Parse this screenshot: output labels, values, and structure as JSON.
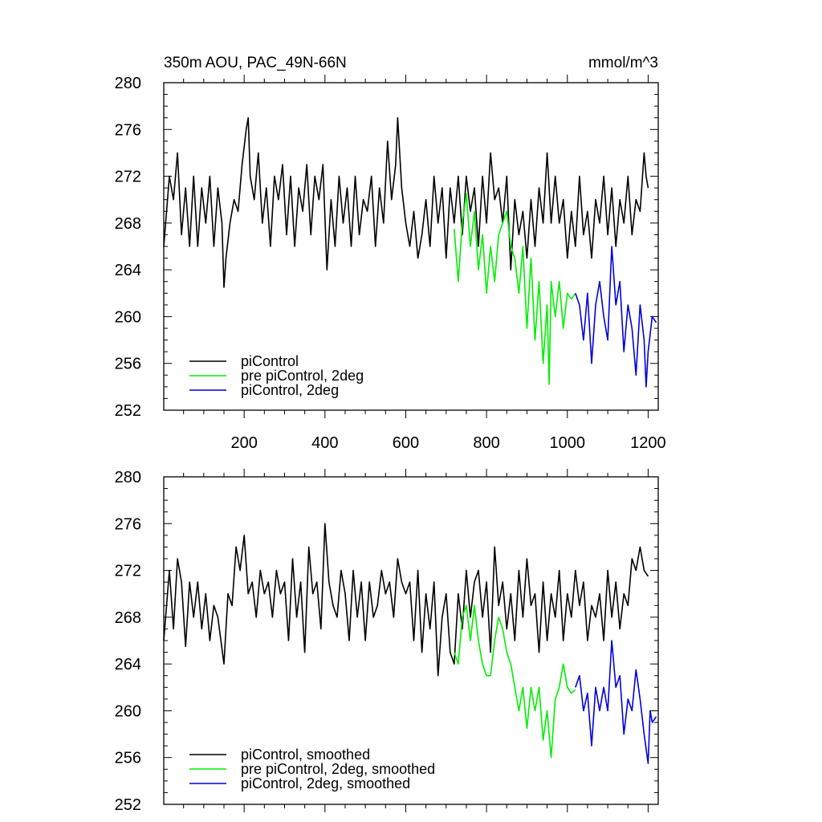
{
  "chart_data": [
    {
      "type": "line",
      "title": "350m AOU, PAC_49N-66N",
      "units": "mmol/m^3",
      "xlim": [
        1,
        1225
      ],
      "ylim": [
        252,
        280
      ],
      "xticks": [
        200,
        400,
        600,
        800,
        1000,
        1200
      ],
      "xtick_labels": [
        "200",
        "400",
        "600",
        "800",
        "1000",
        "1200"
      ],
      "yticks": [
        252,
        256,
        260,
        264,
        268,
        272,
        276,
        280
      ],
      "ytick_labels": [
        "252",
        "256",
        "260",
        "264",
        "268",
        "272",
        "276",
        "280"
      ],
      "legend_position": "bottom-left",
      "series": [
        {
          "name": "piControl",
          "color": "#000000",
          "x": [
            1,
            15,
            25,
            35,
            45,
            55,
            65,
            75,
            85,
            95,
            105,
            115,
            125,
            135,
            145,
            150,
            155,
            165,
            175,
            185,
            195,
            205,
            210,
            215,
            225,
            235,
            245,
            255,
            265,
            275,
            285,
            295,
            305,
            315,
            325,
            335,
            345,
            355,
            365,
            375,
            385,
            395,
            405,
            415,
            425,
            435,
            445,
            455,
            465,
            475,
            485,
            495,
            505,
            515,
            525,
            535,
            545,
            555,
            565,
            575,
            580,
            590,
            600,
            610,
            620,
            630,
            640,
            650,
            660,
            670,
            680,
            690,
            700,
            710,
            720,
            730,
            740,
            750,
            760,
            770,
            780,
            790,
            800,
            810,
            820,
            830,
            840,
            850,
            860,
            870,
            880,
            890,
            900,
            910,
            920,
            930,
            940,
            950,
            960,
            970,
            980,
            990,
            1000,
            1010,
            1020,
            1030,
            1040,
            1050,
            1060,
            1070,
            1080,
            1090,
            1100,
            1110,
            1120,
            1130,
            1140,
            1150,
            1160,
            1170,
            1180,
            1190,
            1195,
            1200
          ],
          "y": [
            266,
            272,
            270,
            274,
            267,
            271,
            266,
            272,
            266,
            271,
            268,
            272,
            266,
            271,
            268,
            262.5,
            265,
            268,
            270,
            269,
            273,
            276,
            277,
            272,
            270,
            274,
            268,
            271,
            266,
            272,
            270,
            273,
            267,
            272,
            266,
            271,
            269,
            273,
            267,
            272,
            270,
            273,
            264,
            270,
            266,
            272,
            268,
            271,
            266,
            272,
            267,
            270,
            269,
            272,
            266,
            271,
            268,
            275,
            270,
            273,
            277,
            271,
            268,
            266,
            269,
            265,
            267,
            270,
            266,
            272,
            268,
            271,
            265,
            271,
            268,
            272,
            267,
            272,
            269,
            271,
            266,
            272,
            268,
            274,
            270,
            271,
            268,
            272,
            264,
            270,
            267,
            269,
            265,
            270,
            266,
            271,
            268,
            274,
            268,
            272,
            268,
            270,
            265,
            269,
            266,
            272,
            267,
            269,
            265,
            270,
            268,
            272,
            267,
            271,
            266,
            270,
            268,
            272,
            267,
            270,
            269,
            274,
            272,
            271
          ]
        },
        {
          "name": "pre piControl, 2deg",
          "color": "#00ee00",
          "x": [
            720,
            730,
            740,
            750,
            760,
            770,
            780,
            790,
            800,
            810,
            820,
            830,
            840,
            850,
            860,
            870,
            880,
            890,
            900,
            910,
            920,
            930,
            940,
            950,
            955,
            960,
            970,
            980,
            990,
            1000,
            1010,
            1020
          ],
          "y": [
            267.5,
            263,
            268,
            270.5,
            266,
            269,
            264,
            267,
            262,
            266,
            263,
            267,
            268,
            269,
            266,
            265,
            262,
            266,
            259,
            265,
            258,
            263,
            256,
            261,
            254.2,
            263,
            260,
            263,
            259,
            262,
            261.5,
            262
          ]
        },
        {
          "name": "piControl, 2deg",
          "color": "#0000dd",
          "x": [
            1020,
            1030,
            1040,
            1050,
            1060,
            1070,
            1080,
            1090,
            1100,
            1110,
            1120,
            1130,
            1140,
            1150,
            1160,
            1170,
            1180,
            1190,
            1195,
            1200,
            1210,
            1220
          ],
          "y": [
            262,
            261,
            258,
            262,
            256,
            261,
            263,
            260,
            258,
            266,
            261,
            263,
            257,
            261,
            259,
            255,
            261,
            258,
            254,
            257,
            260,
            259.5
          ]
        }
      ]
    },
    {
      "type": "line",
      "title": "",
      "xlim": [
        1,
        1225
      ],
      "ylim": [
        252,
        280
      ],
      "yticks": [
        252,
        256,
        260,
        264,
        268,
        272,
        276,
        280
      ],
      "ytick_labels": [
        "252",
        "256",
        "260",
        "264",
        "268",
        "272",
        "276",
        "280"
      ],
      "legend_position": "bottom-left",
      "series": [
        {
          "name": "piControl, smoothed",
          "color": "#000000",
          "x": [
            1,
            15,
            25,
            35,
            45,
            55,
            65,
            75,
            85,
            95,
            105,
            115,
            125,
            135,
            150,
            160,
            170,
            180,
            190,
            200,
            210,
            220,
            230,
            240,
            250,
            260,
            270,
            280,
            290,
            300,
            310,
            320,
            330,
            340,
            350,
            360,
            370,
            380,
            390,
            400,
            410,
            420,
            430,
            440,
            450,
            460,
            470,
            480,
            490,
            500,
            510,
            520,
            530,
            540,
            550,
            560,
            570,
            580,
            590,
            600,
            610,
            620,
            630,
            640,
            650,
            660,
            670,
            680,
            690,
            700,
            710,
            720,
            730,
            740,
            750,
            760,
            770,
            780,
            790,
            800,
            810,
            820,
            830,
            840,
            850,
            860,
            870,
            880,
            890,
            900,
            910,
            920,
            930,
            940,
            950,
            960,
            970,
            980,
            990,
            1000,
            1010,
            1020,
            1030,
            1040,
            1050,
            1060,
            1070,
            1080,
            1090,
            1100,
            1110,
            1120,
            1130,
            1140,
            1150,
            1160,
            1170,
            1180,
            1190,
            1200
          ],
          "y": [
            266,
            272,
            267,
            273,
            271,
            265.5,
            271,
            268,
            271,
            267,
            270,
            266,
            269,
            268,
            264,
            270,
            269,
            274,
            272,
            275,
            270,
            271,
            268,
            272,
            270,
            271,
            268,
            272,
            270,
            271,
            266,
            273,
            268,
            271,
            265,
            274,
            270,
            271,
            267,
            276,
            271,
            269,
            268,
            272,
            270,
            266,
            272,
            268,
            271,
            266,
            271,
            268,
            269,
            272,
            270,
            271,
            268,
            273,
            271,
            270,
            271,
            266,
            272,
            265,
            270,
            267,
            271,
            263,
            268,
            270,
            265,
            264,
            270,
            267,
            272,
            268,
            271,
            272,
            268,
            271,
            265,
            274,
            269,
            271,
            267,
            270,
            266,
            272,
            268,
            273,
            269,
            270,
            265,
            271,
            266,
            270,
            268,
            272,
            266,
            270,
            268,
            272,
            269,
            271,
            266,
            269,
            268,
            270,
            266,
            272,
            268,
            271,
            267,
            270,
            269,
            273,
            272,
            274,
            272,
            271.5
          ]
        },
        {
          "name": "pre piControl, 2deg, smoothed",
          "color": "#00ee00",
          "x": [
            720,
            730,
            740,
            750,
            760,
            770,
            780,
            790,
            800,
            810,
            820,
            830,
            840,
            850,
            860,
            870,
            880,
            890,
            900,
            910,
            920,
            930,
            940,
            950,
            960,
            970,
            980,
            990,
            1000,
            1010,
            1020
          ],
          "y": [
            265,
            264,
            268,
            269,
            266,
            269,
            266,
            264,
            263,
            263,
            266,
            268,
            267,
            265,
            264,
            262,
            260,
            262,
            258.5,
            262,
            260,
            262,
            257.5,
            260,
            256,
            261,
            262,
            264,
            262,
            261.5,
            261.8
          ]
        },
        {
          "name": "piControl, 2deg, smoothed",
          "color": "#0000dd",
          "x": [
            1020,
            1030,
            1040,
            1050,
            1060,
            1070,
            1080,
            1090,
            1100,
            1110,
            1120,
            1130,
            1140,
            1150,
            1160,
            1170,
            1180,
            1190,
            1200,
            1205,
            1210,
            1220
          ],
          "y": [
            262,
            263,
            260,
            261.5,
            257,
            262,
            260,
            262,
            260,
            266,
            262,
            263,
            258,
            261,
            260,
            263.5,
            261,
            258,
            255.5,
            260,
            259,
            259.5
          ]
        }
      ]
    }
  ]
}
